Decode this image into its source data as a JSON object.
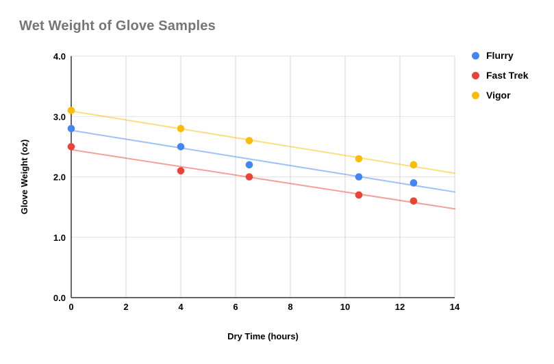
{
  "chart_data": {
    "type": "scatter",
    "title": "Wet Weight of Glove Samples",
    "xlabel": "Dry Time (hours)",
    "ylabel": "Glove Weight (oz)",
    "xlim": [
      0,
      14
    ],
    "ylim": [
      0,
      4
    ],
    "x_ticks": [
      "0",
      "2",
      "4",
      "6",
      "8",
      "10",
      "12",
      "14"
    ],
    "y_ticks": [
      "0.0",
      "1.0",
      "2.0",
      "3.0",
      "4.0"
    ],
    "grid": true,
    "legend_position": "right",
    "colors": {
      "title": "#757575",
      "axis_line": "#333333",
      "gridline_vertical": "#D6D6D6",
      "gridline_horizontal": "#E2E2E2",
      "tick_label": "#000000"
    },
    "series": [
      {
        "name": "Flurry",
        "color": "#4285F4",
        "x": [
          0,
          4,
          6.5,
          10.5,
          12.5
        ],
        "y": [
          2.8,
          2.5,
          2.2,
          2.0,
          1.9
        ],
        "trendline": {
          "x": [
            0,
            14
          ],
          "y": [
            2.77,
            1.75
          ]
        }
      },
      {
        "name": "Fast Trek",
        "color": "#EA4335",
        "x": [
          0,
          4,
          6.5,
          10.5,
          12.5
        ],
        "y": [
          2.5,
          2.1,
          2.0,
          1.7,
          1.6
        ],
        "trendline": {
          "x": [
            0,
            14
          ],
          "y": [
            2.45,
            1.47
          ]
        }
      },
      {
        "name": "Vigor",
        "color": "#FBBC04",
        "x": [
          0,
          4,
          6.5,
          10.5,
          12.5
        ],
        "y": [
          3.1,
          2.8,
          2.6,
          2.3,
          2.2
        ],
        "trendline": {
          "x": [
            0,
            14
          ],
          "y": [
            3.09,
            2.06
          ]
        }
      }
    ]
  }
}
